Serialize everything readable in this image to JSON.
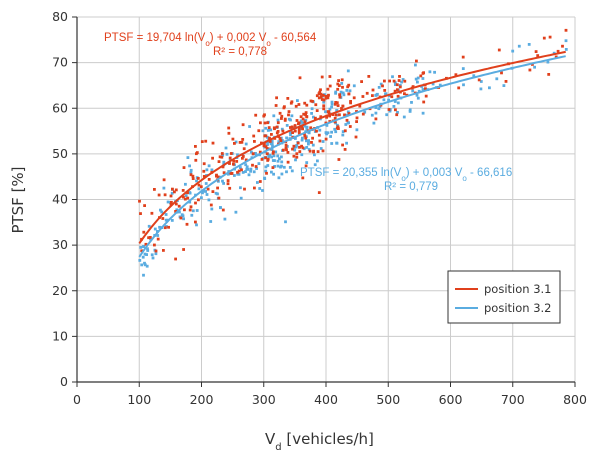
{
  "chart_data": {
    "type": "scatter",
    "title": "",
    "xlabel": "V_d [vehicles/h]",
    "xlabel_main": "V",
    "xlabel_sub": "d",
    "xlabel_rest": " [vehicles/h]",
    "ylabel": "PTSF [%]",
    "xlim": [
      0,
      800
    ],
    "ylim": [
      0,
      80
    ],
    "xticks": [
      0,
      100,
      200,
      300,
      400,
      500,
      600,
      700,
      800
    ],
    "yticks": [
      0,
      10,
      20,
      30,
      40,
      50,
      60,
      70,
      80
    ],
    "grid": true,
    "legend_placement": "bottom-right",
    "colors": {
      "series1": "#e0401c",
      "series2": "#5aace0"
    },
    "series": [
      {
        "name": "position 3.1",
        "points_visible": "scatter of ~400 points, x from 100 to 790, y from 30 to 74",
        "fit": {
          "a": 19.704,
          "b": 0.002,
          "c": -60.564,
          "r2_label": "R² = 0,778"
        },
        "equation_label": "PTSF = 19,704 ln(V_o) + 0,002 V_o - 60,564"
      },
      {
        "name": "position 3.2",
        "points_visible": "scatter of ~400 points, x from 100 to 790, y from 28 to 75",
        "fit": {
          "a": 20.355,
          "b": 0.003,
          "c": -66.616,
          "r2_label": "R² = 0,779"
        },
        "equation_label": "PTSF = 20,355 ln(V_o) + 0,003 V_o - 66,616"
      }
    ]
  },
  "labels": {
    "eq1": {
      "pre": "PTSF = 19,704 ln(V",
      "sub1": "o",
      "mid": ") + 0,002 V",
      "sub2": "o",
      "post": " - 60,564",
      "r2": "R² = 0,778"
    },
    "eq2": {
      "pre": "PTSF = 20,355 ln(V",
      "sub1": "o",
      "mid": ") + 0,003 V",
      "sub2": "o",
      "post": " - 66,616",
      "r2": "R² = 0,779"
    }
  }
}
